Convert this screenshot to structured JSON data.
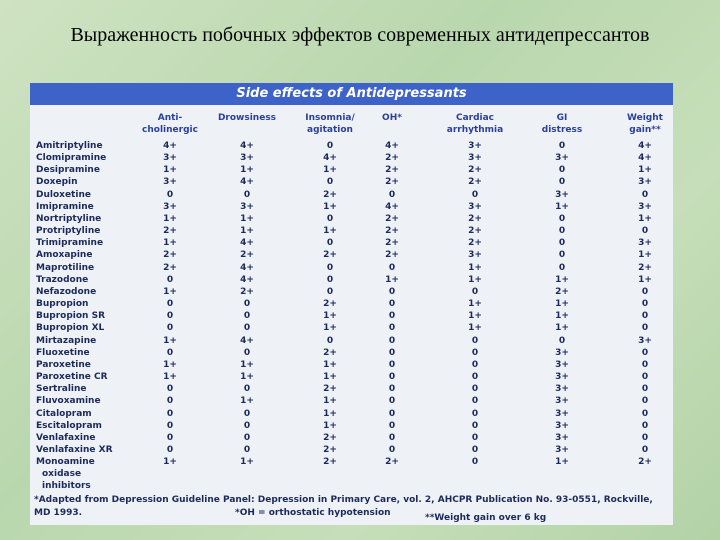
{
  "title": "Выраженность побочных эффектов современных антидепрессантов",
  "table": {
    "caption": "Side effects of Antidepressants",
    "columns": [
      [
        "Anti-",
        "cholinergic"
      ],
      [
        "Drowsiness"
      ],
      [
        "Insomnia/",
        "agitation"
      ],
      [
        "OH*"
      ],
      [
        "Cardiac",
        "arrhythmia"
      ],
      [
        "GI",
        "distress"
      ],
      [
        "Weight",
        "gain**"
      ]
    ],
    "rows": [
      [
        "Amitriptyline",
        "4+",
        "4+",
        "0",
        "4+",
        "3+",
        "0",
        "4+"
      ],
      [
        "Clomipramine",
        "3+",
        "3+",
        "4+",
        "2+",
        "3+",
        "3+",
        "4+"
      ],
      [
        "Desipramine",
        "1+",
        "1+",
        "1+",
        "2+",
        "2+",
        "0",
        "1+"
      ],
      [
        "Doxepin",
        "3+",
        "4+",
        "0",
        "2+",
        "2+",
        "0",
        "3+"
      ],
      [
        "Duloxetine",
        "0",
        "0",
        "2+",
        "0",
        "0",
        "3+",
        "0"
      ],
      [
        "Imipramine",
        "3+",
        "3+",
        "1+",
        "4+",
        "3+",
        "1+",
        "3+"
      ],
      [
        "Nortriptyline",
        "1+",
        "1+",
        "0",
        "2+",
        "2+",
        "0",
        "1+"
      ],
      [
        "Protriptyline",
        "2+",
        "1+",
        "1+",
        "2+",
        "2+",
        "0",
        "0"
      ],
      [
        "Trimipramine",
        "1+",
        "4+",
        "0",
        "2+",
        "2+",
        "0",
        "3+"
      ],
      [
        "Amoxapine",
        "2+",
        "2+",
        "2+",
        "2+",
        "3+",
        "0",
        "1+"
      ],
      [
        "Maprotiline",
        "2+",
        "4+",
        "0",
        "0",
        "1+",
        "0",
        "2+"
      ],
      [
        "Trazodone",
        "0",
        "4+",
        "0",
        "1+",
        "1+",
        "1+",
        "1+"
      ],
      [
        "Nefazodone",
        "1+",
        "2+",
        "0",
        "0",
        "0",
        "2+",
        "0"
      ],
      [
        "Bupropion",
        "0",
        "0",
        "2+",
        "0",
        "1+",
        "1+",
        "0"
      ],
      [
        "Bupropion SR",
        "0",
        "0",
        "1+",
        "0",
        "1+",
        "1+",
        "0"
      ],
      [
        "Bupropion XL",
        "0",
        "0",
        "1+",
        "0",
        "1+",
        "1+",
        "0"
      ],
      [
        "Mirtazapine",
        "1+",
        "4+",
        "0",
        "0",
        "0",
        "0",
        "3+"
      ],
      [
        "Fluoxetine",
        "0",
        "0",
        "2+",
        "0",
        "0",
        "3+",
        "0"
      ],
      [
        "Paroxetine",
        "1+",
        "1+",
        "1+",
        "0",
        "0",
        "3+",
        "0"
      ],
      [
        "Paroxetine CR",
        "1+",
        "1+",
        "1+",
        "0",
        "0",
        "3+",
        "0"
      ],
      [
        "Sertraline",
        "0",
        "0",
        "2+",
        "0",
        "0",
        "3+",
        "0"
      ],
      [
        "Fluvoxamine",
        "0",
        "1+",
        "1+",
        "0",
        "0",
        "3+",
        "0"
      ],
      [
        "Citalopram",
        "0",
        "0",
        "1+",
        "0",
        "0",
        "3+",
        "0"
      ],
      [
        "Escitalopram",
        "0",
        "0",
        "1+",
        "0",
        "0",
        "3+",
        "0"
      ],
      [
        "Venlafaxine",
        "0",
        "0",
        "2+",
        "0",
        "0",
        "3+",
        "0"
      ],
      [
        "Venlafaxine XR",
        "0",
        "0",
        "2+",
        "0",
        "0",
        "3+",
        "0"
      ],
      [
        "Monoamine oxidase inhibitors",
        "1+",
        "1+",
        "2+",
        "2+",
        "0",
        "1+",
        "2+"
      ]
    ]
  },
  "footnotes": [
    "*Adapted from Depression Guideline Panel: Depression in Primary Care, vol. 2, AHCPR Publication No. 93-0551, Rockville, MD 1993.",
    "*OH = orthostatic hypotension",
    "**Weight gain over 6 kg"
  ]
}
